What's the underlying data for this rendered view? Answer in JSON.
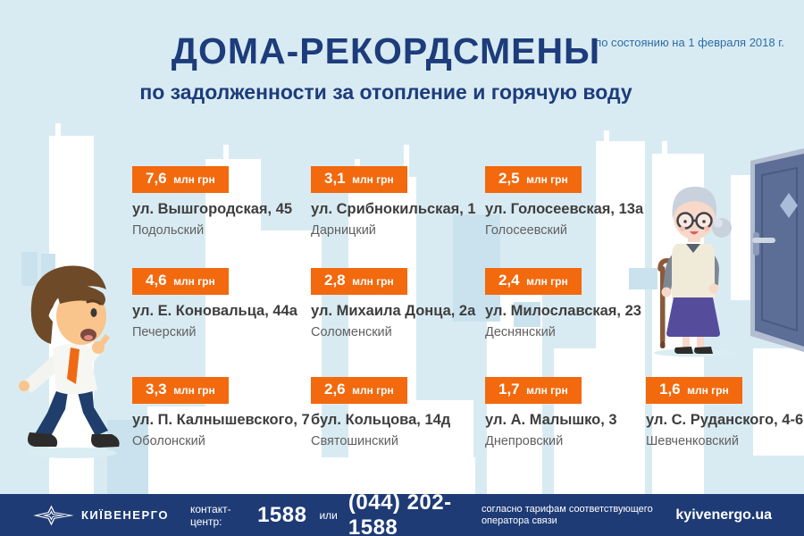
{
  "title": "ДОМА-РЕКОРДСМЕНЫ",
  "subtitle": "по задолженности за отопление и горячую воду",
  "date_note": "по состоянию на 1 февраля 2018 г.",
  "records": [
    {
      "amount": "7,6",
      "unit": "млн грн",
      "address": "ул. Вышгородская, 45",
      "district": "Подольский"
    },
    {
      "amount": "3,1",
      "unit": "млн грн",
      "address": "ул. Срибнокильская, 1",
      "district": "Дарницкий"
    },
    {
      "amount": "2,5",
      "unit": "млн грн",
      "address": "ул. Голосеевская, 13а",
      "district": "Голосеевский"
    },
    {
      "amount": "4,6",
      "unit": "млн грн",
      "address": "ул. Е. Коновальца, 44а",
      "district": "Печерский"
    },
    {
      "amount": "2,8",
      "unit": "млн грн",
      "address": "ул. Михаила Донца, 2а",
      "district": "Соломенский"
    },
    {
      "amount": "2,4",
      "unit": "млн грн",
      "address": "ул. Милославская, 23",
      "district": "Деснянский"
    },
    {
      "amount": "3,3",
      "unit": "млн грн",
      "address": "ул. П. Калнышевского, 7",
      "district": "Оболонский"
    },
    {
      "amount": "2,6",
      "unit": "млн грн",
      "address": "бул. Кольцова, 14д",
      "district": "Святошинский"
    },
    {
      "amount": "1,7",
      "unit": "млн грн",
      "address": "ул. А. Малышко, 3",
      "district": "Днепровский"
    },
    {
      "amount": "1,6",
      "unit": "млн грн",
      "address": "ул. С. Руданского, 4-6",
      "district": "Шевченковский"
    }
  ],
  "footer": {
    "brand": "КИЇВЕНЕРГО",
    "contact_label": "контакт-центр:",
    "phone_short": "1588",
    "or_label": "или",
    "phone_full": "(044) 202-1588",
    "tariff_note": "согласно тарифам соответствующего оператора связи",
    "website": "kyivenergo.ua"
  },
  "colors": {
    "background": "#d9ebf2",
    "accent_orange": "#f2690e",
    "title_navy": "#1d3c7c",
    "footer_navy": "#1e3b76",
    "date_blue": "#2b6da8"
  }
}
